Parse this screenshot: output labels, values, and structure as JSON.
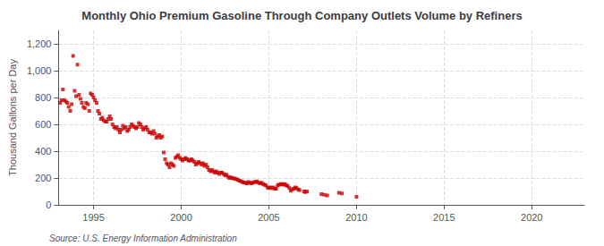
{
  "chart_data": {
    "type": "scatter",
    "title": "Monthly Ohio Premium Gasoline Through Company Outlets Volume by Refiners",
    "ylabel": "Thousand Gallons per Day",
    "annotation": "Source: U.S. Energy Information Administration",
    "color": "#cc0000",
    "marker": "square",
    "grid": true,
    "xlim": [
      1993.0,
      2023.0
    ],
    "xticks": [
      1995,
      2000,
      2005,
      2010,
      2015,
      2020
    ],
    "ylim": [
      0,
      1300
    ],
    "yticks": [
      0,
      200,
      400,
      600,
      800,
      {
        "value": 1000,
        "label": "1,000"
      },
      {
        "value": 1200,
        "label": "1,200"
      }
    ],
    "x": [
      1993.08,
      1993.17,
      1993.25,
      1993.33,
      1993.42,
      1993.5,
      1993.58,
      1993.67,
      1993.75,
      1993.83,
      1993.92,
      1994.0,
      1994.08,
      1994.17,
      1994.25,
      1994.33,
      1994.42,
      1994.5,
      1994.58,
      1994.67,
      1994.75,
      1994.83,
      1994.92,
      1995.0,
      1995.08,
      1995.17,
      1995.25,
      1995.33,
      1995.42,
      1995.5,
      1995.58,
      1995.67,
      1995.75,
      1995.83,
      1995.92,
      1996.0,
      1996.08,
      1996.17,
      1996.25,
      1996.33,
      1996.42,
      1996.5,
      1996.58,
      1996.67,
      1996.75,
      1996.83,
      1996.92,
      1997.0,
      1997.08,
      1997.17,
      1997.25,
      1997.33,
      1997.42,
      1997.5,
      1997.58,
      1997.67,
      1997.75,
      1997.83,
      1997.92,
      1998.0,
      1998.08,
      1998.17,
      1998.25,
      1998.33,
      1998.42,
      1998.5,
      1998.58,
      1998.67,
      1998.75,
      1998.83,
      1998.92,
      1999.0,
      1999.08,
      1999.17,
      1999.25,
      1999.33,
      1999.42,
      1999.5,
      1999.58,
      1999.67,
      1999.75,
      1999.83,
      1999.92,
      2000.0,
      2000.08,
      2000.17,
      2000.25,
      2000.33,
      2000.42,
      2000.5,
      2000.58,
      2000.67,
      2000.75,
      2000.83,
      2000.92,
      2001.0,
      2001.08,
      2001.17,
      2001.25,
      2001.33,
      2001.42,
      2001.5,
      2001.58,
      2001.67,
      2001.75,
      2001.83,
      2001.92,
      2002.0,
      2002.08,
      2002.17,
      2002.25,
      2002.33,
      2002.42,
      2002.5,
      2002.58,
      2002.67,
      2002.75,
      2002.83,
      2002.92,
      2003.0,
      2003.08,
      2003.17,
      2003.25,
      2003.33,
      2003.42,
      2003.5,
      2003.58,
      2003.67,
      2003.75,
      2003.83,
      2003.92,
      2004.0,
      2004.08,
      2004.17,
      2004.25,
      2004.33,
      2004.42,
      2004.5,
      2004.58,
      2004.67,
      2004.75,
      2004.83,
      2004.92,
      2005.0,
      2005.08,
      2005.17,
      2005.25,
      2005.33,
      2005.42,
      2005.5,
      2005.58,
      2005.67,
      2005.75,
      2005.83,
      2005.92,
      2006.0,
      2006.08,
      2006.17,
      2006.25,
      2006.33,
      2006.42,
      2006.5,
      2006.58,
      2006.67,
      2006.75,
      2007.0,
      2007.08,
      2007.17,
      2008.0,
      2008.17,
      2008.33,
      2009.0,
      2009.17,
      2010.0
    ],
    "values": [
      760,
      780,
      860,
      780,
      770,
      760,
      730,
      700,
      750,
      1110,
      850,
      810,
      1045,
      820,
      790,
      760,
      730,
      720,
      760,
      750,
      700,
      830,
      820,
      800,
      780,
      760,
      700,
      680,
      640,
      650,
      630,
      620,
      620,
      640,
      660,
      640,
      600,
      580,
      570,
      580,
      560,
      540,
      560,
      590,
      570,
      580,
      550,
      560,
      580,
      600,
      590,
      580,
      570,
      580,
      610,
      600,
      580,
      560,
      570,
      580,
      560,
      540,
      540,
      530,
      550,
      530,
      500,
      510,
      520,
      500,
      510,
      390,
      340,
      310,
      300,
      280,
      310,
      300,
      290,
      350,
      360,
      370,
      350,
      340,
      330,
      340,
      350,
      340,
      330,
      330,
      340,
      330,
      320,
      300,
      310,
      320,
      310,
      300,
      310,
      290,
      300,
      280,
      260,
      250,
      260,
      250,
      240,
      250,
      240,
      230,
      240,
      240,
      230,
      220,
      225,
      210,
      200,
      205,
      200,
      195,
      195,
      190,
      185,
      180,
      175,
      170,
      165,
      165,
      160,
      170,
      165,
      160,
      165,
      170,
      170,
      175,
      165,
      160,
      165,
      155,
      150,
      145,
      130,
      125,
      130,
      125,
      130,
      120,
      120,
      145,
      150,
      155,
      155,
      150,
      155,
      145,
      140,
      125,
      105,
      115,
      120,
      130,
      125,
      115,
      110,
      100,
      95,
      100,
      80,
      75,
      70,
      90,
      85,
      60
    ]
  }
}
